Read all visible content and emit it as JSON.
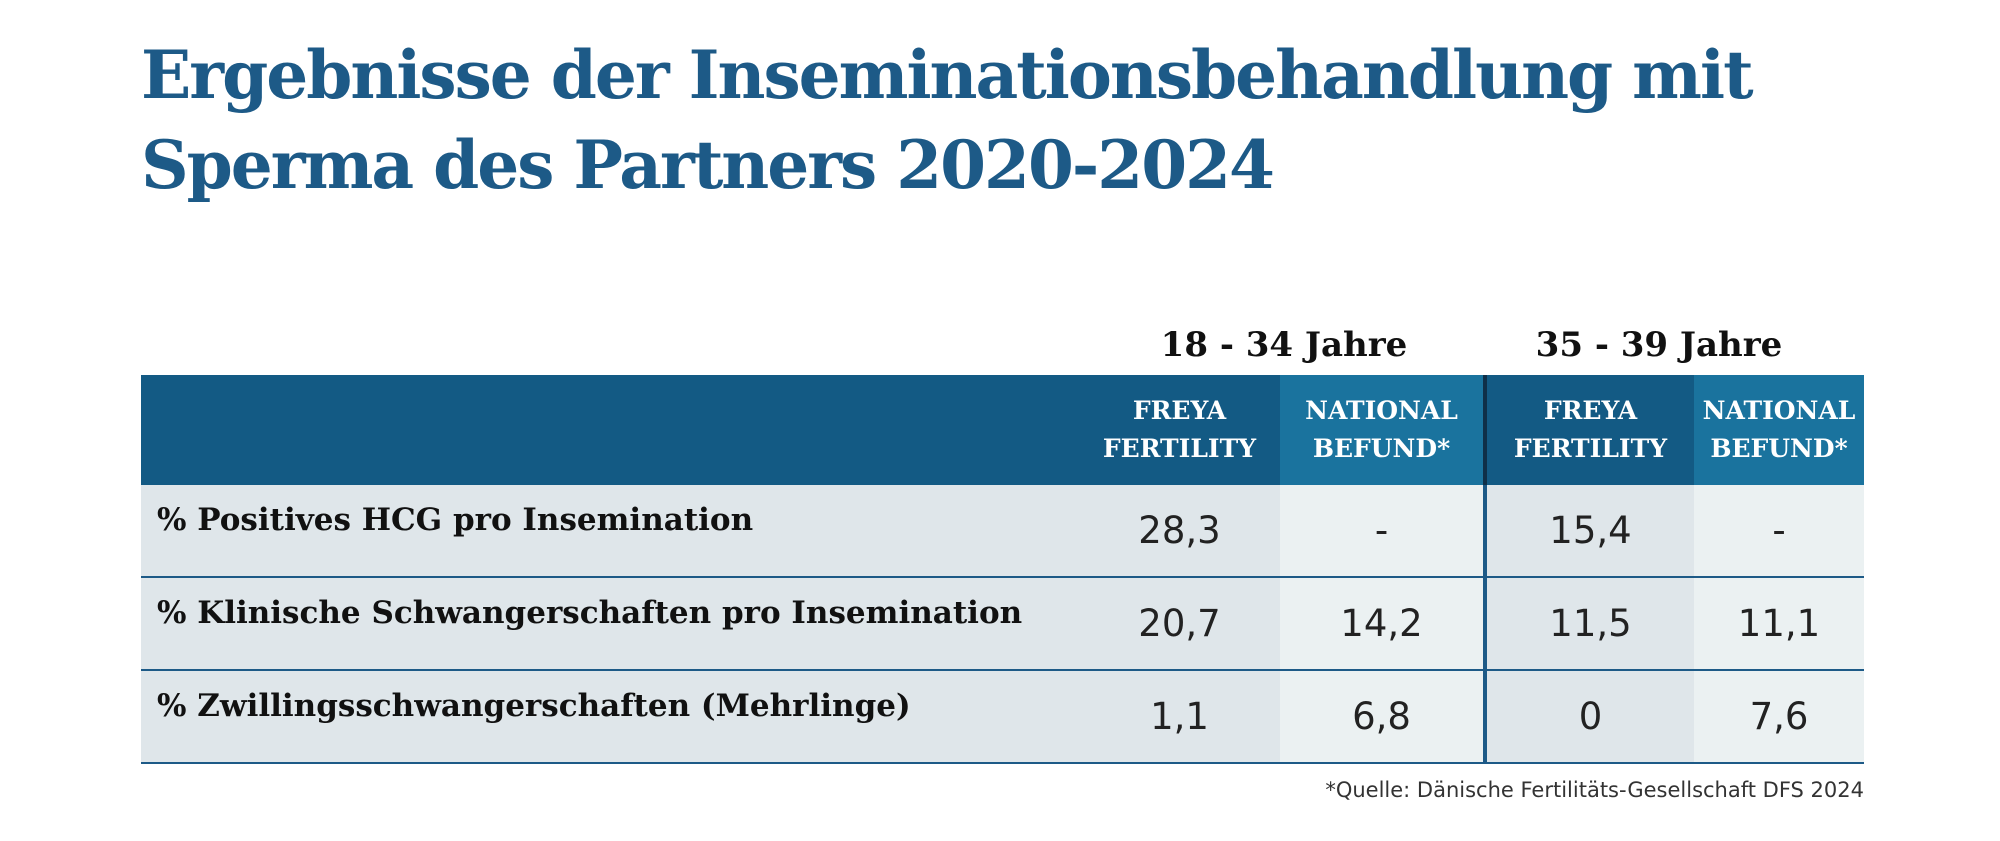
{
  "title": "Ergebnisse der Inseminationsbehandlung mit Sperma des Partners 2020-2024",
  "groups": [
    {
      "label": "18 - 34 Jahre"
    },
    {
      "label": "35 - 39 Jahre"
    }
  ],
  "columns": [
    {
      "line1": "FREYA",
      "line2": "FERTILITY"
    },
    {
      "line1": "NATIONAL",
      "line2": "BEFUND*"
    },
    {
      "line1": "FREYA",
      "line2": "FERTILITY"
    },
    {
      "line1": "NATIONAL",
      "line2": "BEFUND*"
    }
  ],
  "rows": [
    {
      "label": "% Positives HCG pro Insemination",
      "values": [
        "28,3",
        "-",
        "15,4",
        "-"
      ]
    },
    {
      "label": "% Klinische Schwangerschaften pro Insemination",
      "values": [
        "20,7",
        "14,2",
        "11,5",
        "11,1"
      ]
    },
    {
      "label": "% Zwillingsschwangerschaften (Mehrlinge)",
      "values": [
        "1,1",
        "6,8",
        "0",
        "7,6"
      ]
    }
  ],
  "footnote": "*Quelle: Dänische Fertilitäts-Gesellschaft DFS 2024",
  "colors": {
    "title": "#1d5a87",
    "header_dark": "#135a84",
    "header_light": "#1a739e",
    "cell_a": "#dfe6ea",
    "cell_b": "#ebf1f2"
  }
}
